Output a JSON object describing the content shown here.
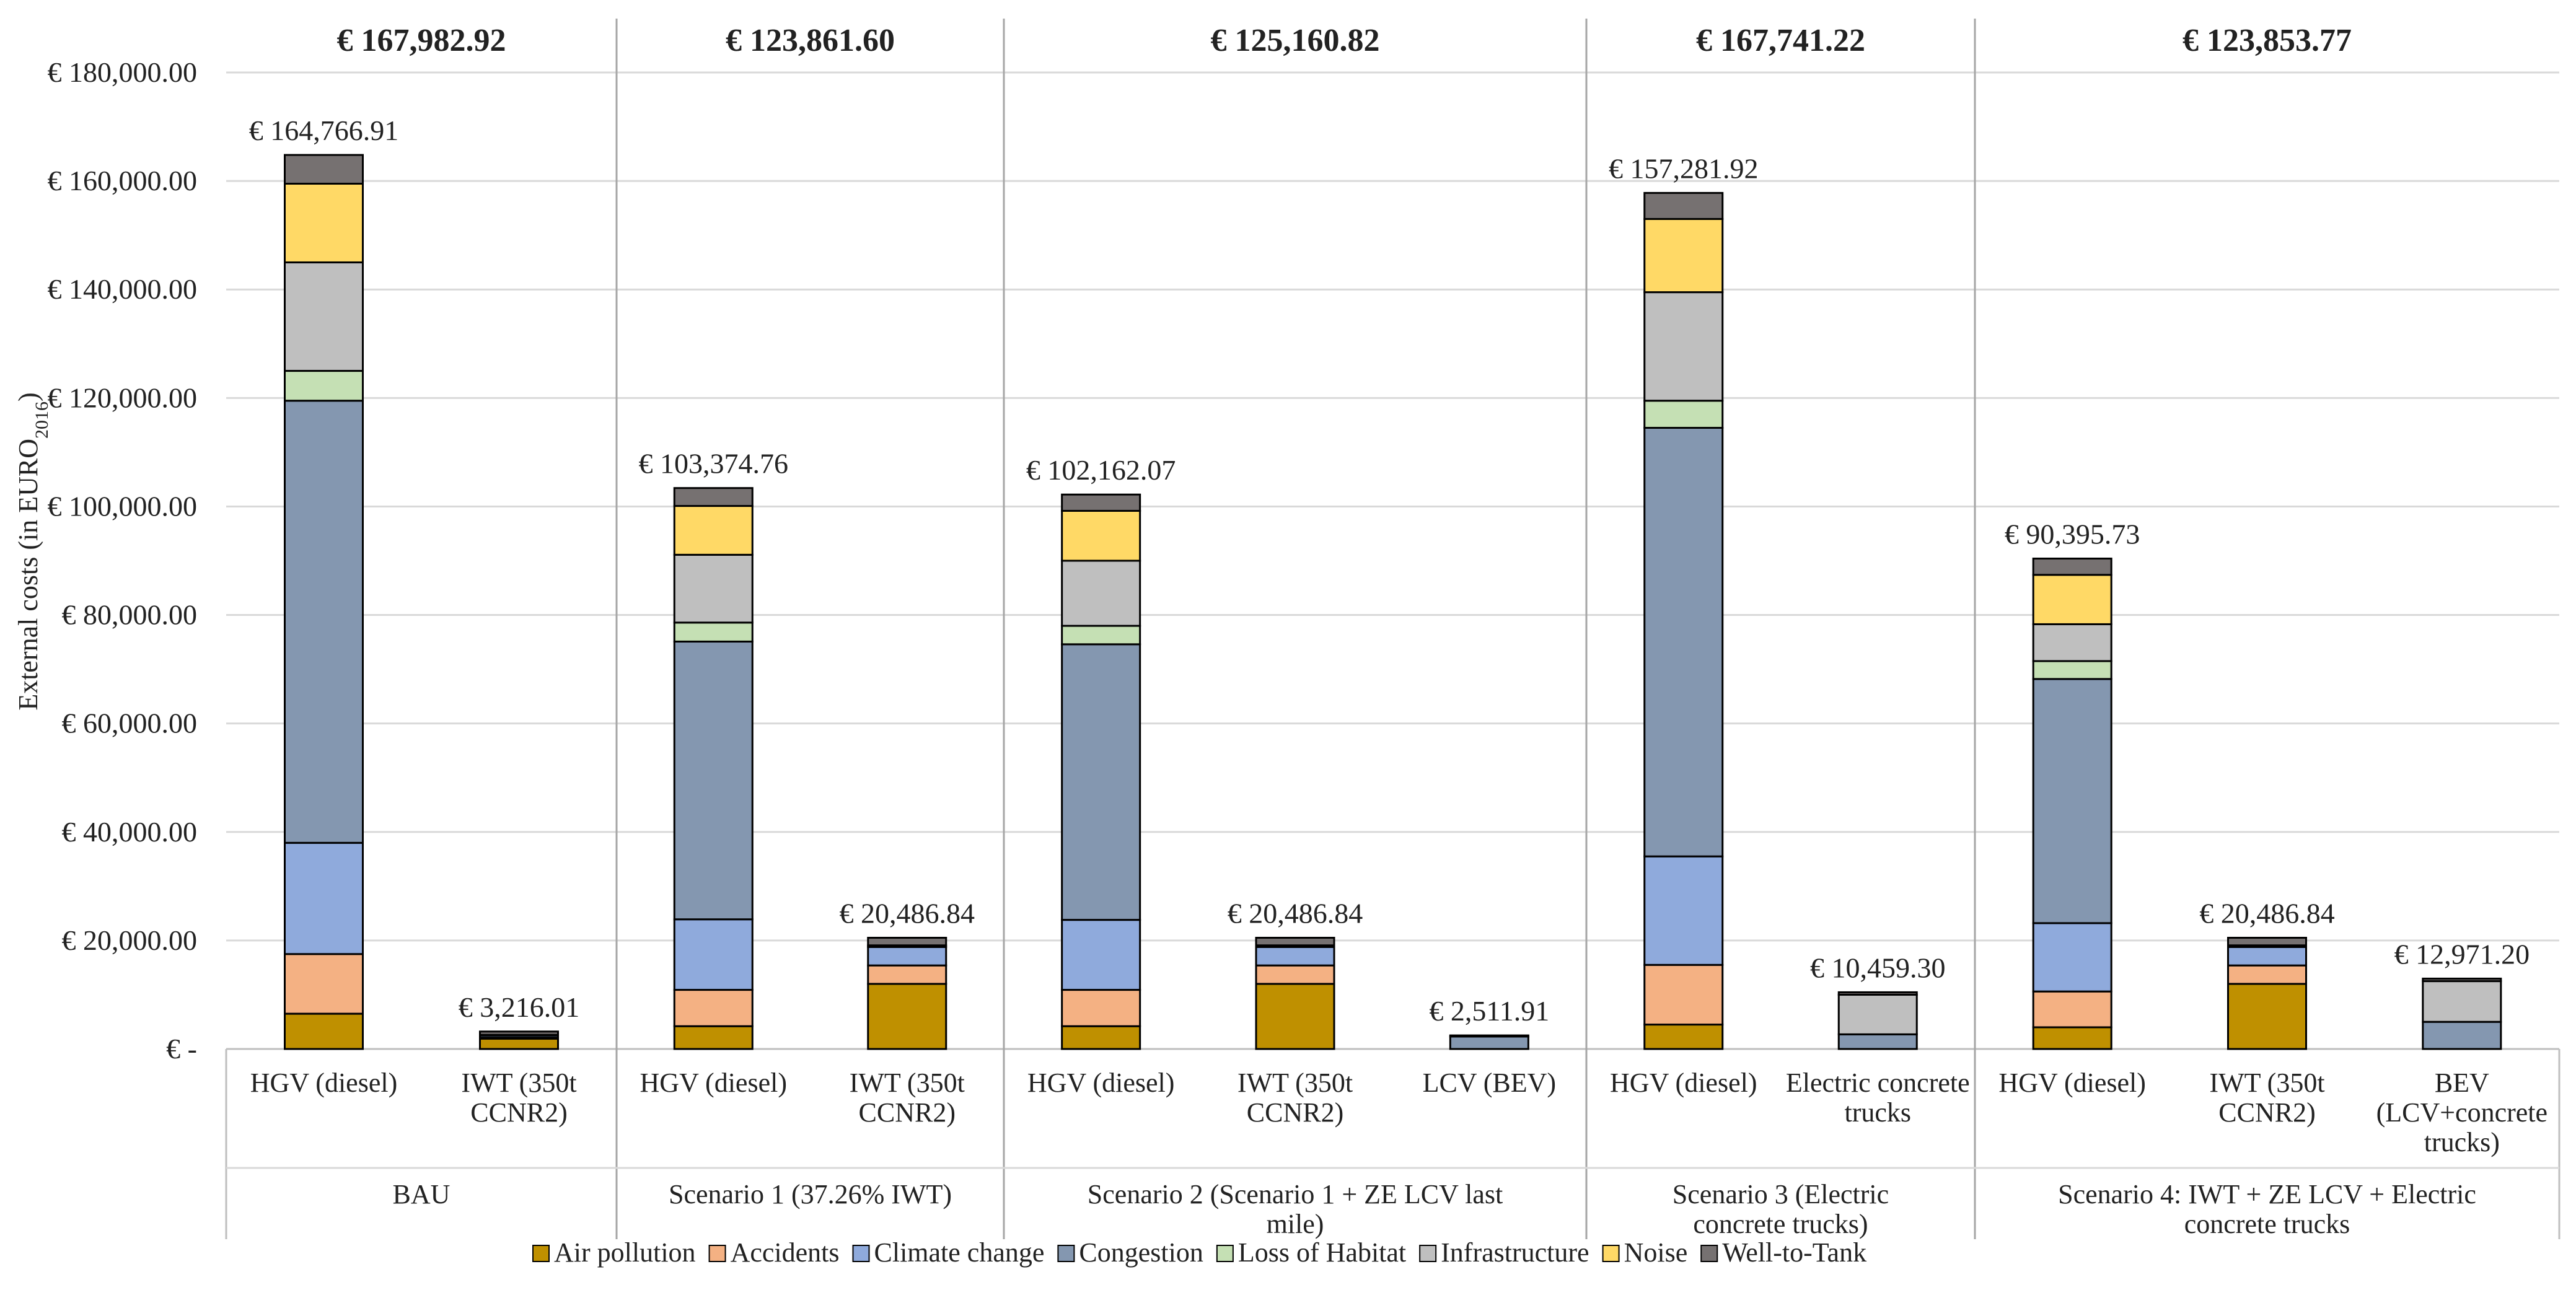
{
  "chart_data": {
    "type": "bar",
    "stacked": true,
    "ylabel_main": "External costs (in EURO",
    "ylabel_sub": "2016",
    "ylabel_end": ")",
    "ylim": [
      0,
      180000
    ],
    "y_ticks": [
      {
        "value": 0,
        "label": "€ -"
      },
      {
        "value": 20000,
        "label": "€ 20,000.00"
      },
      {
        "value": 40000,
        "label": "€ 40,000.00"
      },
      {
        "value": 60000,
        "label": "€ 60,000.00"
      },
      {
        "value": 80000,
        "label": "€ 80,000.00"
      },
      {
        "value": 100000,
        "label": "€ 100,000.00"
      },
      {
        "value": 120000,
        "label": "€ 120,000.00"
      },
      {
        "value": 140000,
        "label": "€ 140,000.00"
      },
      {
        "value": 160000,
        "label": "€ 160,000.00"
      },
      {
        "value": 180000,
        "label": "€ 180,000.00"
      }
    ],
    "grid": true,
    "legend_position": "bottom",
    "series": [
      {
        "name": "Air pollution",
        "color": "#BF9000"
      },
      {
        "name": "Accidents",
        "color": "#F4B183"
      },
      {
        "name": "Climate change",
        "color": "#8FAADC"
      },
      {
        "name": "Congestion",
        "color": "#8497B0"
      },
      {
        "name": "Loss of Habitat",
        "color": "#C5E0B4"
      },
      {
        "name": "Infrastructure",
        "color": "#BFBFBF"
      },
      {
        "name": "Noise",
        "color": "#FFD966"
      },
      {
        "name": "Well-to-Tank",
        "color": "#767171"
      }
    ],
    "groups": [
      {
        "name": "BAU",
        "total": "€ 167,982.92",
        "bars": [
          {
            "category": [
              "HGV (diesel)"
            ],
            "label": "€ 164,766.91",
            "values": [
              6500,
              11000,
              20500,
              81500,
              5500,
              20000,
              14500,
              5300
            ]
          },
          {
            "category": [
              "IWT (350t",
              "CCNR2)"
            ],
            "label": "€ 3,216.01",
            "values": [
              1900,
              200,
              400,
              100,
              0,
              0,
              0,
              616
            ]
          }
        ]
      },
      {
        "name": "Scenario 1 (37.26% IWT)",
        "total": "€ 123,861.60",
        "bars": [
          {
            "category": [
              "HGV (diesel)"
            ],
            "label": "€ 103,374.76",
            "values": [
              4200,
              6700,
              13000,
              51200,
              3500,
              12500,
              9000,
              3300
            ]
          },
          {
            "category": [
              "IWT (350t",
              "CCNR2)"
            ],
            "label": "€ 20,486.84",
            "values": [
              12000,
              3400,
              3400,
              300,
              0,
              0,
              0,
              1400
            ]
          }
        ]
      },
      {
        "name": "Scenario 2 (Scenario 1 + ZE LCV last mile)",
        "total": "€ 125,160.82",
        "bars": [
          {
            "category": [
              "HGV (diesel)"
            ],
            "label": "€ 102,162.07",
            "values": [
              4200,
              6700,
              12900,
              50800,
              3400,
              12000,
              9200,
              3000
            ]
          },
          {
            "category": [
              "IWT (350t",
              "CCNR2)"
            ],
            "label": "€ 20,486.84",
            "values": [
              12000,
              3400,
              3400,
              300,
              0,
              0,
              0,
              1400
            ]
          },
          {
            "category": [
              "LCV (BEV)"
            ],
            "label": "€ 2,511.91",
            "values": [
              0,
              0,
              0,
              2300,
              0,
              200,
              0,
              0
            ]
          }
        ]
      },
      {
        "name": "Scenario 3 (Electric concrete trucks)",
        "total": "€ 167,741.22",
        "bars": [
          {
            "category": [
              "HGV (diesel)"
            ],
            "label": "€ 157,281.92",
            "values": [
              4500,
              11000,
              20000,
              79000,
              5000,
              20000,
              13500,
              4800
            ]
          },
          {
            "category": [
              "Electric concrete",
              "trucks"
            ],
            "label": "€ 10,459.30",
            "values": [
              0,
              0,
              0,
              2700,
              0,
              7300,
              0,
              459
            ]
          }
        ]
      },
      {
        "name": "Scenario 4: IWT + ZE LCV + Electric concrete trucks",
        "total": "€ 123,853.77",
        "bars": [
          {
            "category": [
              "HGV (diesel)"
            ],
            "label": "€ 90,395.73",
            "values": [
              4000,
              6600,
              12600,
              45000,
              3300,
              6800,
              9100,
              3000
            ]
          },
          {
            "category": [
              "IWT (350t",
              "CCNR2)"
            ],
            "label": "€ 20,486.84",
            "values": [
              12000,
              3400,
              3400,
              300,
              0,
              0,
              0,
              1400
            ]
          },
          {
            "category": [
              "BEV",
              "(LCV+concrete",
              "trucks)"
            ],
            "label": "€ 12,971.20",
            "values": [
              0,
              0,
              0,
              5000,
              0,
              7500,
              0,
              471
            ]
          }
        ]
      }
    ]
  }
}
